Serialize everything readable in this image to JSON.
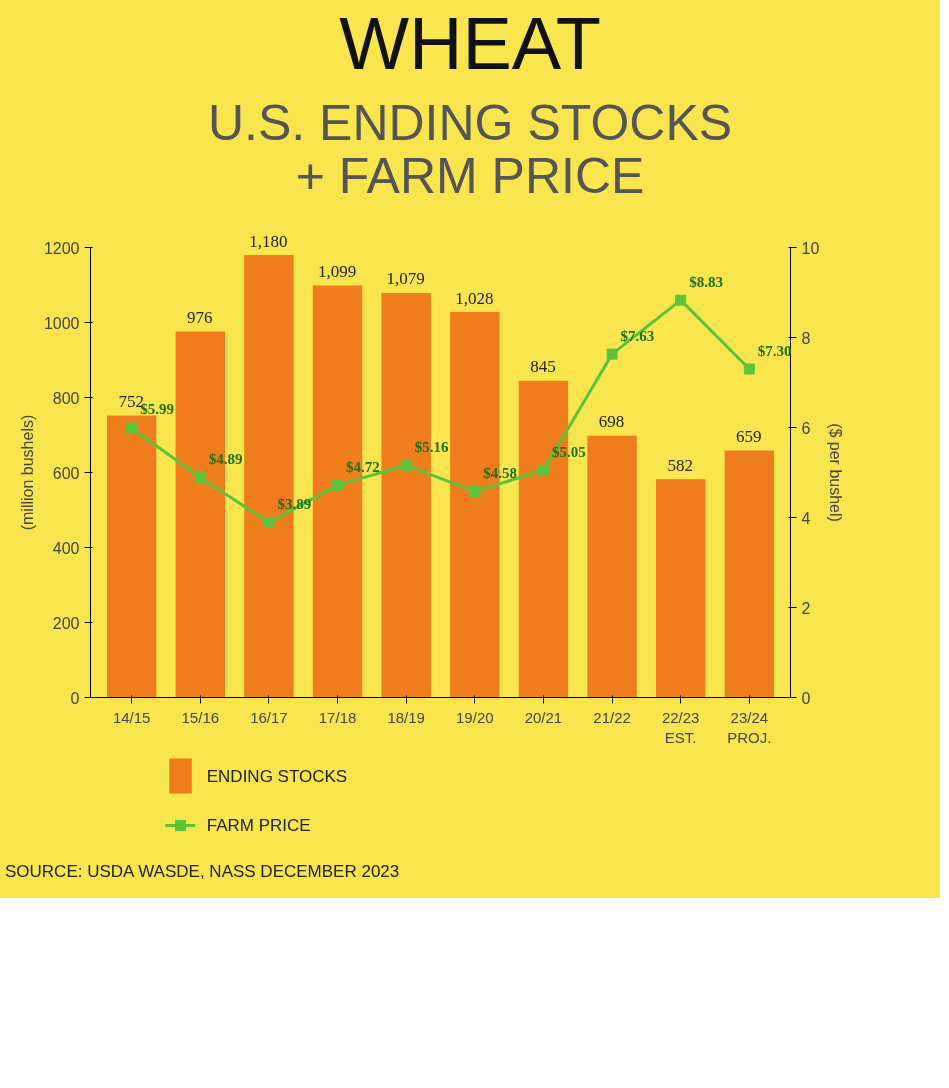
{
  "chart_data": {
    "type": "bar",
    "title": "WHEAT",
    "subtitle": "U.S. ENDING STOCKS\n+ FARM PRICE",
    "ylabel": "(million bushels)",
    "y2label": "($ per bushel)",
    "categories": [
      "14/15",
      "15/16",
      "16/17",
      "17/18",
      "18/19",
      "19/20",
      "20/21",
      "21/22",
      "22/23\nEST.",
      "23/24\nPROJ."
    ],
    "series": [
      {
        "name": "ENDING STOCKS",
        "color": "#f07d1c",
        "values": [
          752,
          976,
          1180,
          1099,
          1079,
          1028,
          845,
          698,
          582,
          659
        ],
        "value_labels": [
          "752",
          "976",
          "1,180",
          "1,099",
          "1,079",
          "1,028",
          "845",
          "698",
          "582",
          "659"
        ]
      },
      {
        "name": "FARM PRICE",
        "type": "line",
        "axis": "y2",
        "color": "#5cc43a",
        "marker": "square",
        "values": [
          5.99,
          4.89,
          3.89,
          4.72,
          5.16,
          4.58,
          5.05,
          7.63,
          8.83,
          7.3
        ],
        "value_labels": [
          "$5.99",
          "$4.89",
          "$3.89",
          "$4.72",
          "$5.16",
          "$4.58",
          "$5.05",
          "$7.63",
          "$8.83",
          "$7.30"
        ]
      }
    ],
    "ylim": [
      0,
      1200
    ],
    "yticks": [
      0,
      200,
      400,
      600,
      800,
      1000,
      1200
    ],
    "y2lim": [
      0,
      10
    ],
    "y2ticks": [
      0,
      2,
      4,
      6,
      8,
      10
    ],
    "grid": false,
    "legend": "bottom left",
    "annotations": [
      "SOURCE: USDA WASDE, NASS DECEMBER 2023"
    ]
  }
}
